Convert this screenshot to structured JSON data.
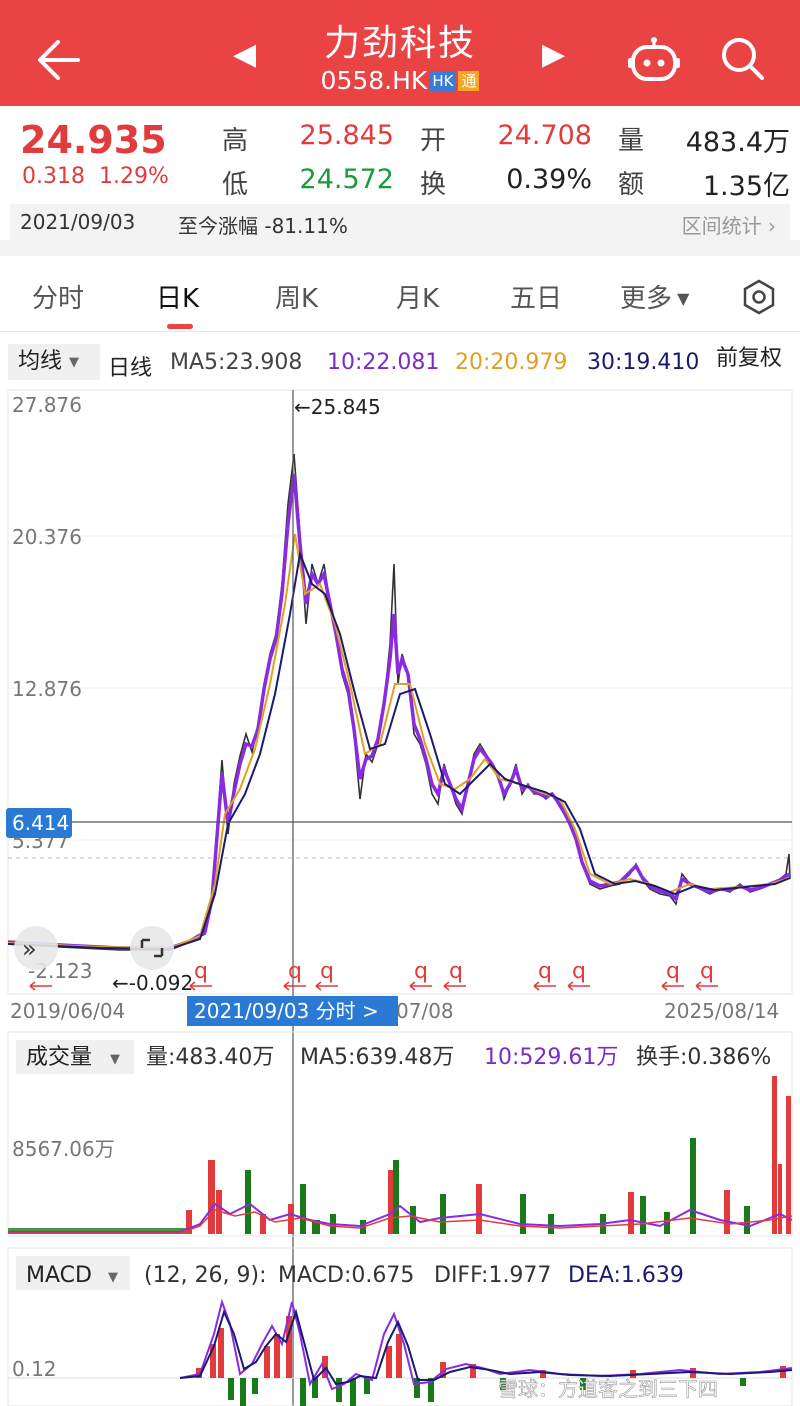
{
  "header": {
    "title": "力劲科技",
    "code": "0558.HK",
    "badge_hk": "HK",
    "badge_tong": "通"
  },
  "quote": {
    "price": "24.935",
    "change": "0.318",
    "change_pct": "1.29%",
    "high_label": "高",
    "high": "25.845",
    "open_label": "开",
    "open": "24.708",
    "volume_label": "量",
    "volume": "483.4万",
    "low_label": "低",
    "low": "24.572",
    "turnover_label": "换",
    "turnover": "0.39%",
    "amount_label": "额",
    "amount": "1.35亿",
    "date": "2021/09/03",
    "since_label": "至今涨幅",
    "since_value": "-81.11%",
    "range_stats": "区间统计"
  },
  "tabs": [
    {
      "label": "分时"
    },
    {
      "label": "日K"
    },
    {
      "label": "周K"
    },
    {
      "label": "月K"
    },
    {
      "label": "五日"
    },
    {
      "label": "更多"
    }
  ],
  "ma": {
    "dropdown": "均线",
    "period": "日线",
    "ma5": "MA5:23.908",
    "ma10": "10:22.081",
    "ma20": "20:20.979",
    "ma30": "30:19.410",
    "adjust": "前复权"
  },
  "colors": {
    "ma5": "#8a2be2",
    "ma10": "#7b2cc7",
    "ma20": "#e0a020",
    "ma30": "#1a1a6e",
    "up": "#e23b3b",
    "down": "#1a7a1a"
  },
  "chart_data": [
    {
      "type": "line",
      "y_ticks": [
        "27.876",
        "20.376",
        "12.876",
        "5.377",
        "-2.123"
      ],
      "current_price_tag": "6.414",
      "crosshair_high": "←25.845",
      "crosshair_low": "←-0.092",
      "x_ticks": [
        "2019/06/04",
        "07/08",
        "2025/08/14"
      ],
      "crosshair_date": "2021/09/03 分时 >",
      "ylim": [
        -2.123,
        27.876
      ]
    },
    {
      "type": "bar",
      "dropdown": "成交量",
      "volume": "量:483.40万",
      "ma5": "MA5:639.48万",
      "ma10": "10:529.61万",
      "turnover": "换手:0.386%",
      "y_tick": "8567.06万"
    },
    {
      "type": "bar",
      "dropdown": "MACD",
      "params": "(12, 26, 9):",
      "macd": "MACD:0.675",
      "diff": "DIFF:1.977",
      "dea": "DEA:1.639",
      "y_tick": "0.12"
    }
  ],
  "watermark": "雪球：方道客之到三下四"
}
